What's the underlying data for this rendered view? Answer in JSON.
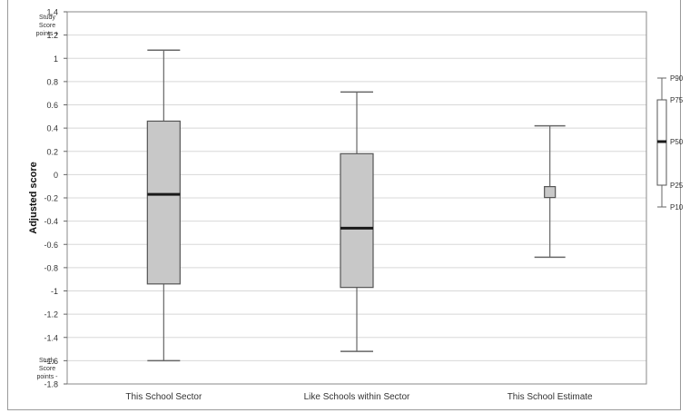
{
  "chart_data": {
    "type": "boxplot",
    "title": "",
    "ylabel": "Adjusted score",
    "ylim": [
      -1.8,
      1.4
    ],
    "ytick_step": 0.2,
    "grid": true,
    "y_top_note": [
      "Study",
      "Score",
      "points +"
    ],
    "y_bottom_note": [
      "Study",
      "Score",
      "points -"
    ],
    "categories": [
      "This School Sector",
      "Like Schools within Sector",
      "This School Estimate"
    ],
    "boxes": [
      {
        "category": "This School Sector",
        "p10": -1.6,
        "p25": -0.94,
        "p50": -0.17,
        "p75": 0.46,
        "p90": 1.07
      },
      {
        "category": "Like Schools within Sector",
        "p10": -1.52,
        "p25": -0.97,
        "p50": -0.46,
        "p75": 0.18,
        "p90": 0.71
      }
    ],
    "estimate": {
      "category": "This School Estimate",
      "value": -0.15,
      "lower": -0.71,
      "upper": 0.42
    },
    "legend_labels": [
      "P90",
      "P75",
      "P50",
      "P25",
      "P10"
    ],
    "colors": {
      "box_fill": "#c8c8c8",
      "box_stroke": "#555555",
      "median": "#1a1a1a",
      "grid": "#d8d8d8",
      "whisker": "#666666"
    }
  }
}
